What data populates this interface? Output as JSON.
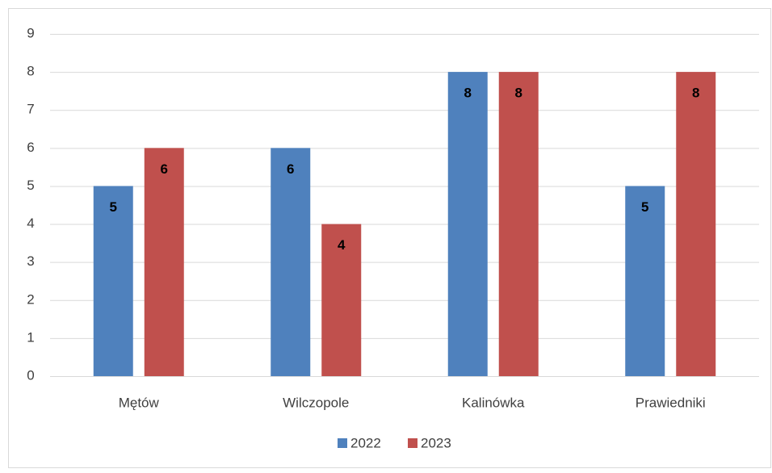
{
  "chart_data": {
    "type": "bar",
    "categories": [
      "Mętów",
      "Wilczopole",
      "Kalinówka",
      "Prawiedniki"
    ],
    "series": [
      {
        "name": "2022",
        "color": "#4f81bd",
        "values": [
          5,
          6,
          8,
          5
        ]
      },
      {
        "name": "2023",
        "color": "#c0504d",
        "values": [
          6,
          4,
          8,
          8
        ]
      }
    ],
    "ylim": [
      0,
      9
    ],
    "yticks": [
      0,
      1,
      2,
      3,
      4,
      5,
      6,
      7,
      8,
      9
    ],
    "grid": true,
    "legend": "bottom"
  }
}
